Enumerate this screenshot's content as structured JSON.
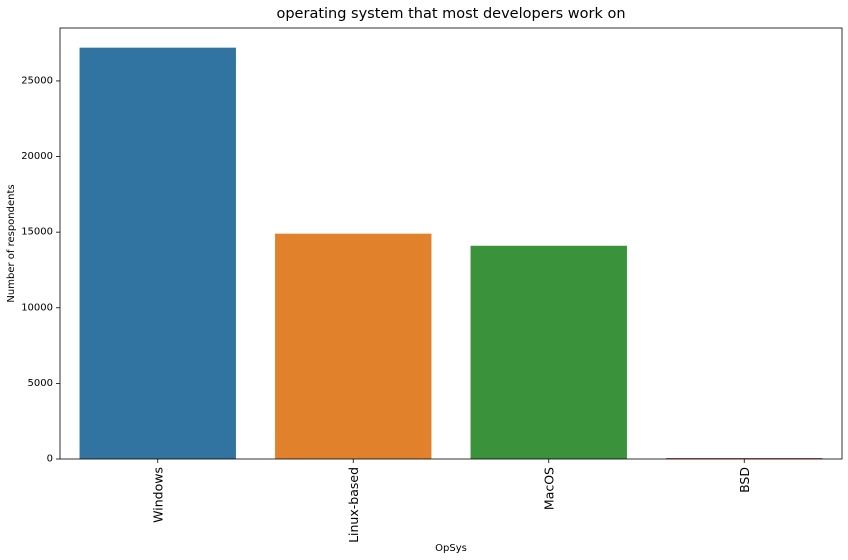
{
  "chart_data": {
    "type": "bar",
    "title": "operating system that most developers work on",
    "xlabel": "OpSys",
    "ylabel": "Number of respondents",
    "categories": [
      "Windows",
      "Linux-based",
      "MacOS",
      "BSD"
    ],
    "values": [
      27200,
      14900,
      14100,
      60
    ],
    "colors": [
      "#3274a1",
      "#e1812c",
      "#3a923a",
      "#c03d3e"
    ],
    "ylim": [
      0,
      28500
    ],
    "yticks": [
      0,
      5000,
      10000,
      15000,
      20000,
      25000
    ],
    "grid": false,
    "legend": "none"
  }
}
